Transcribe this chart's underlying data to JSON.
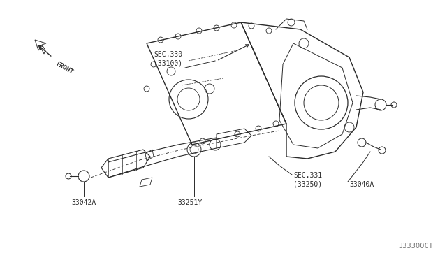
{
  "background_color": "#ffffff",
  "fig_width": 6.4,
  "fig_height": 3.72,
  "dpi": 100,
  "line_color": "#2a2a2a",
  "text_color": "#2a2a2a",
  "front_label": "FRONT",
  "sec330_label": "SEC.330\n(33100)",
  "sec331_label": "SEC.331\n(33250)",
  "part_33040A": "33040A",
  "part_33251Y": "33251Y",
  "part_33042A": "33042A",
  "watermark": "J33300CT",
  "note_color": "#666666"
}
